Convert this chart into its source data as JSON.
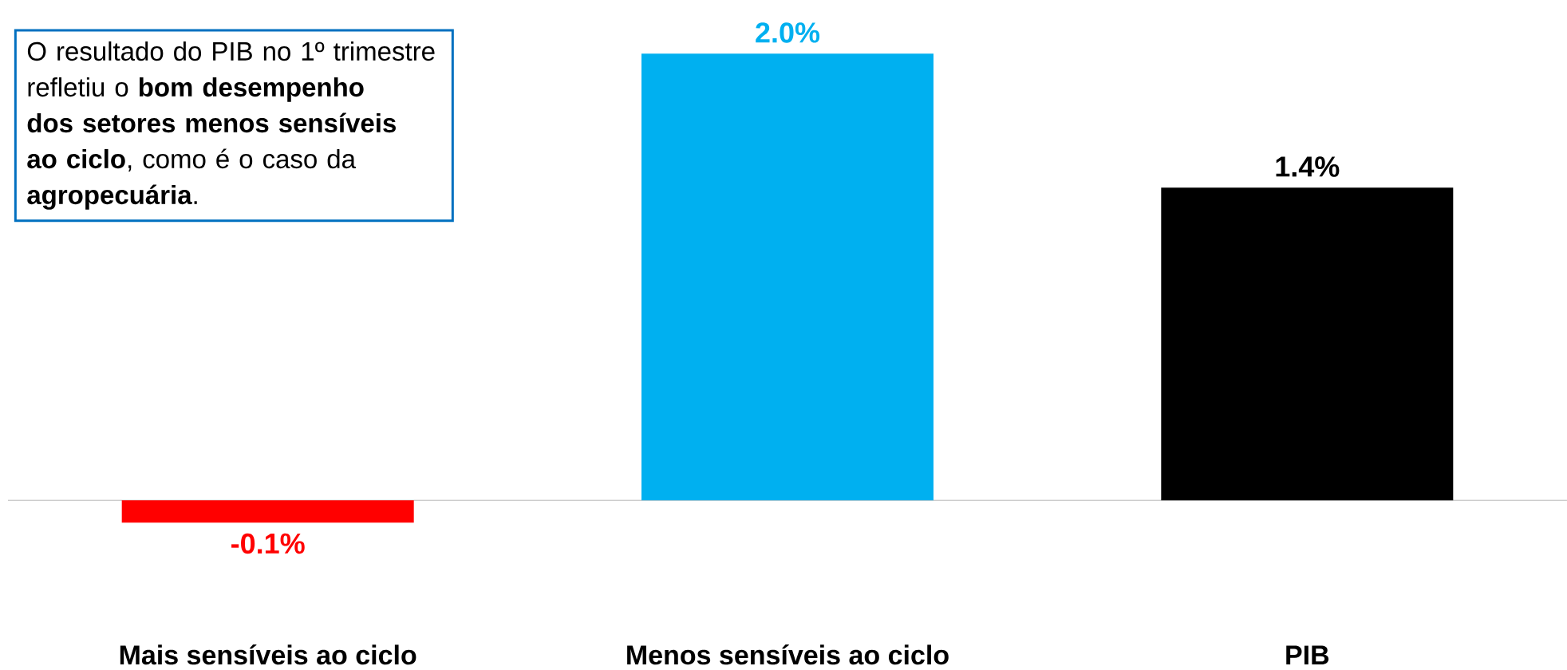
{
  "chart_data": {
    "type": "bar",
    "categories": [
      "Mais sensíveis ao ciclo",
      "Menos sensíveis ao ciclo",
      "PIB"
    ],
    "values": [
      -0.1,
      2.0,
      1.4
    ],
    "colors": [
      "#ff0000",
      "#00b0f0",
      "#000000"
    ],
    "value_labels": [
      "-0.1%",
      "2.0%",
      "1.4%"
    ],
    "annotations": [
      "O resultado do PIB no 1º trimestre refletiu o **bom desempenho dos setores menos sensíveis ao ciclo**, como é o caso da **agropecuária**."
    ]
  }
}
